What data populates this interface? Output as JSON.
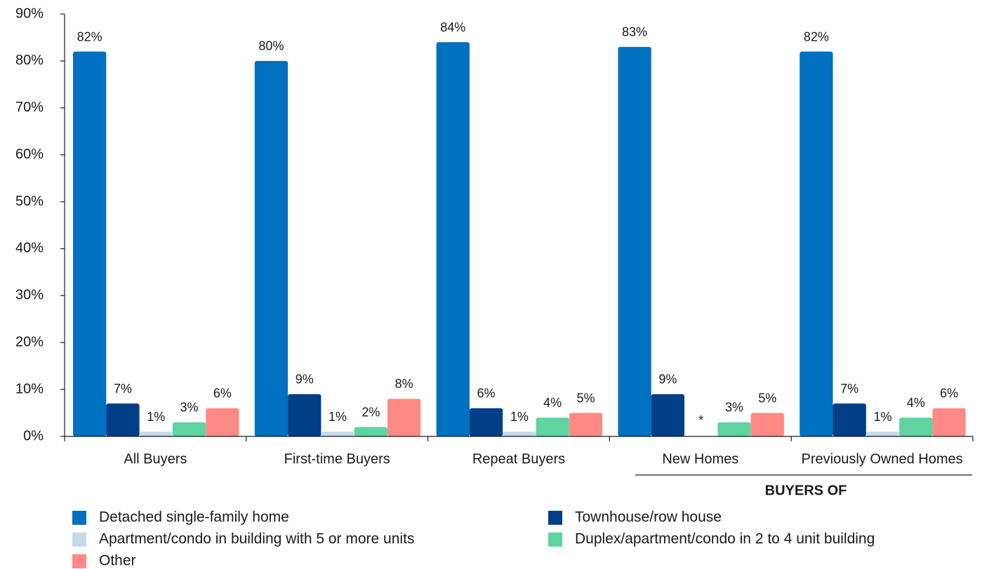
{
  "chart_data": {
    "type": "bar",
    "categories": [
      "All Buyers",
      "First-time Buyers",
      "Repeat Buyers",
      "New Homes",
      "Previously Owned Homes"
    ],
    "series": [
      {
        "name": "Detached single-family home",
        "color": "#0070c0",
        "values": [
          82,
          80,
          84,
          83,
          82
        ],
        "value_labels": [
          "82%",
          "80%",
          "84%",
          "83%",
          "82%"
        ]
      },
      {
        "name": "Townhouse/row house",
        "color": "#003f87",
        "values": [
          7,
          9,
          6,
          9,
          7
        ],
        "value_labels": [
          "7%",
          "9%",
          "6%",
          "9%",
          "7%"
        ]
      },
      {
        "name": "Apartment/condo in building with 5 or more units",
        "color": "#c5d9ec",
        "values": [
          1,
          1,
          1,
          null,
          1
        ],
        "value_labels": [
          "1%",
          "1%",
          "1%",
          "*",
          "1%"
        ]
      },
      {
        "name": "Duplex/apartment/condo in 2 to 4 unit building",
        "color": "#5fd3a0",
        "values": [
          3,
          2,
          4,
          3,
          4
        ],
        "value_labels": [
          "3%",
          "2%",
          "4%",
          "3%",
          "4%"
        ]
      },
      {
        "name": "Other",
        "color": "#ff8a85",
        "values": [
          6,
          8,
          5,
          5,
          6
        ],
        "value_labels": [
          "6%",
          "8%",
          "5%",
          "5%",
          "6%"
        ]
      }
    ],
    "annotation": "BUYERS OF",
    "ylim": [
      0,
      90
    ],
    "yticks": [
      {
        "value": 0,
        "label": "0%"
      },
      {
        "value": 10,
        "label": "10%"
      },
      {
        "value": 20,
        "label": "20%"
      },
      {
        "value": 30,
        "label": "30%"
      },
      {
        "value": 40,
        "label": "40%"
      },
      {
        "value": 50,
        "label": "50%"
      },
      {
        "value": 60,
        "label": "60%"
      },
      {
        "value": 70,
        "label": "70%"
      },
      {
        "value": 80,
        "label": "80%"
      },
      {
        "value": 90,
        "label": "90%"
      }
    ],
    "legend": "bottom"
  }
}
